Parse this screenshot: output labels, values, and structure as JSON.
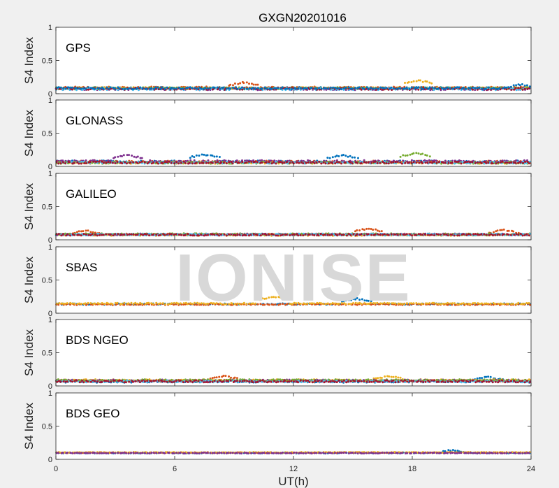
{
  "chart_data": {
    "type": "scatter",
    "title": "GXGN20201016",
    "xlabel": "UT(h)",
    "ylabel": "S4 Index",
    "xlim": [
      0,
      24
    ],
    "ylim": [
      0,
      1
    ],
    "xticks": [
      "0",
      "6",
      "12",
      "18",
      "24"
    ],
    "yticks": [
      "0",
      "0.5",
      "1"
    ],
    "watermark": "IONISE",
    "panels": [
      {
        "label": "GPS",
        "baseline": 0.08,
        "noise": 0.03,
        "series": 8,
        "features": [
          [
            9.5,
            0.17
          ],
          [
            18.3,
            0.2
          ],
          [
            23.5,
            0.14
          ]
        ]
      },
      {
        "label": "GLONASS",
        "baseline": 0.07,
        "noise": 0.03,
        "series": 7,
        "features": [
          [
            3.6,
            0.17
          ],
          [
            7.5,
            0.18
          ],
          [
            14.5,
            0.17
          ],
          [
            18.2,
            0.2
          ]
        ]
      },
      {
        "label": "GALILEO",
        "baseline": 0.08,
        "noise": 0.025,
        "series": 7,
        "features": [
          [
            1.5,
            0.14
          ],
          [
            15.8,
            0.17
          ],
          [
            22.6,
            0.15
          ]
        ]
      },
      {
        "label": "SBAS",
        "baseline": 0.14,
        "noise": 0.02,
        "series": 3,
        "features": [
          [
            11.0,
            0.25
          ],
          [
            15.2,
            0.22
          ]
        ]
      },
      {
        "label": "BDS NGEO",
        "baseline": 0.08,
        "noise": 0.03,
        "series": 7,
        "features": [
          [
            8.5,
            0.15
          ],
          [
            16.8,
            0.15
          ],
          [
            21.8,
            0.14
          ]
        ]
      },
      {
        "label": "BDS GEO",
        "baseline": 0.1,
        "noise": 0.012,
        "series": 4,
        "features": [
          [
            20.0,
            0.14
          ]
        ]
      }
    ],
    "colors": [
      "#0072BD",
      "#D95319",
      "#EDB120",
      "#7E2F8E",
      "#77AC30",
      "#4DBEEE",
      "#A2142F",
      "#0072BD"
    ],
    "grid": false
  }
}
